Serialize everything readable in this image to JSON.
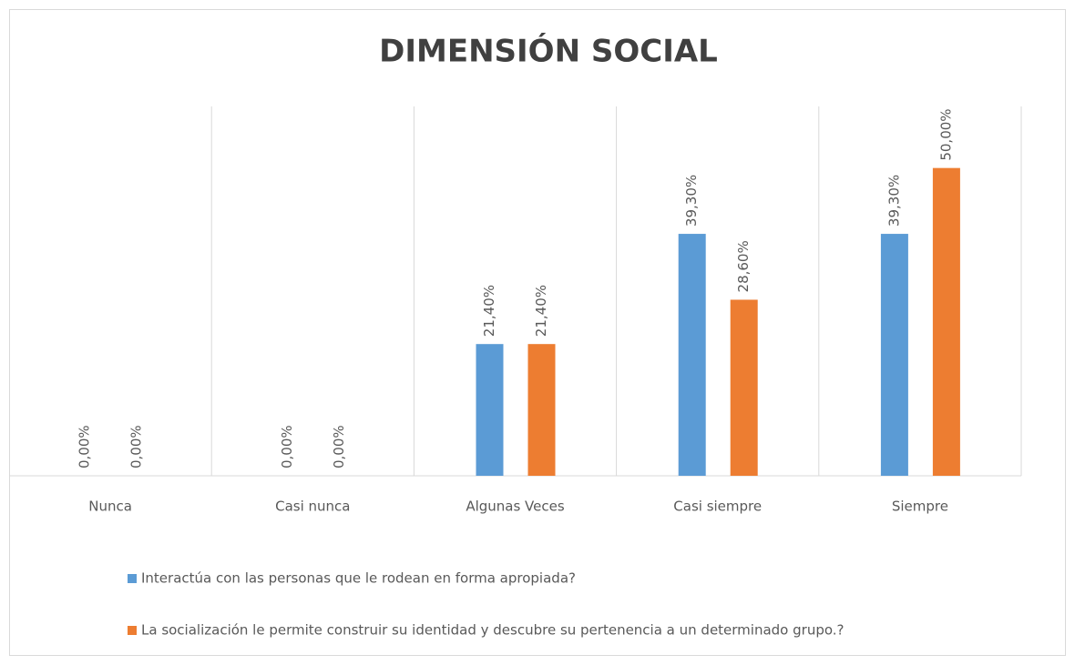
{
  "chart_data": {
    "type": "bar",
    "title": "DIMENSIÓN SOCIAL",
    "categories": [
      "Nunca",
      "Casi nunca",
      "Algunas Veces",
      "Casi siempre",
      "Siempre"
    ],
    "series": [
      {
        "name": "Interactúa con las personas que le rodean en forma apropiada?",
        "color": "#5b9bd5",
        "values": [
          0,
          0,
          21.4,
          39.3,
          39.3
        ],
        "value_labels": [
          "0,00%",
          "0,00%",
          "21,40%",
          "39,30%",
          "39,30%"
        ]
      },
      {
        "name": "La socialización le permite construir su identidad y descubre su pertenencia a un determinado grupo.?",
        "color": "#ed7d31",
        "values": [
          0,
          0,
          21.4,
          28.6,
          50
        ],
        "value_labels": [
          "0,00%",
          "0,00%",
          "21,40%",
          "28,60%",
          "50,00%"
        ]
      }
    ],
    "ylim": [
      0,
      60
    ],
    "legend": "bottom"
  }
}
